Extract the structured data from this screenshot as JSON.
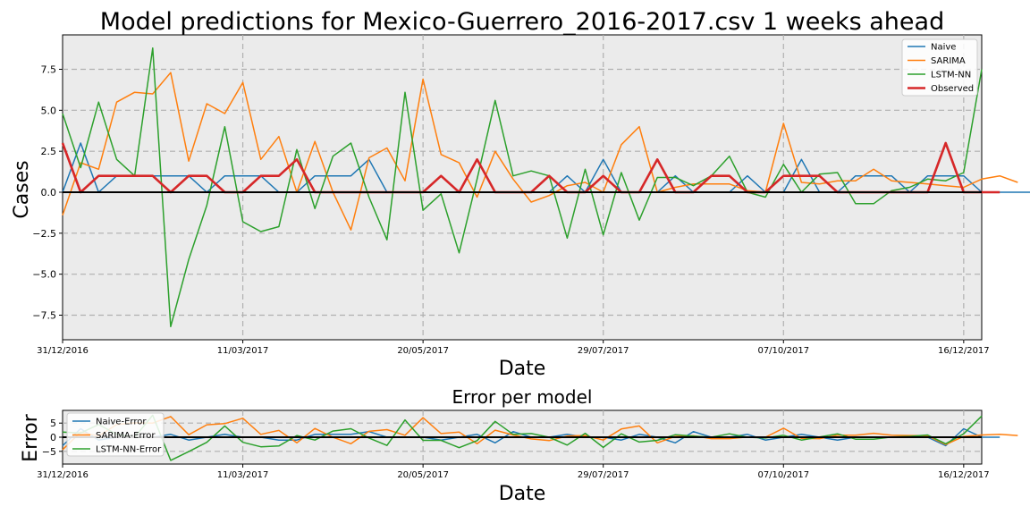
{
  "chart_data": [
    {
      "type": "line",
      "title": "Model predictions for Mexico-Guerrero_2016-2017.csv 1 weeks ahead",
      "xlabel": "Date",
      "ylabel": "Cases",
      "x_start": "31/12/2016",
      "x_step_days": 7,
      "x_ticks": [
        "31/12/2016",
        "11/03/2017",
        "20/05/2017",
        "29/07/2017",
        "07/10/2017",
        "16/12/2017"
      ],
      "xlim": [
        "31/12/2016",
        "23/12/2017"
      ],
      "y_ticks": [
        -7.5,
        -5.0,
        -2.5,
        0.0,
        2.5,
        5.0,
        7.5
      ],
      "ylim": [
        -9,
        9.6
      ],
      "grid": true,
      "legend_position": "upper right",
      "series": [
        {
          "name": "Naive",
          "color": "#1f77b4",
          "values": [
            0,
            3,
            0,
            1,
            1,
            1,
            1,
            1,
            0,
            1,
            1,
            1,
            0,
            0,
            1,
            1,
            1,
            2,
            0,
            0,
            0,
            0,
            0,
            0,
            0,
            0,
            0,
            0,
            1,
            0,
            2,
            0,
            0,
            0,
            1,
            0,
            0,
            0,
            1,
            0,
            0,
            2,
            0,
            0,
            1,
            1,
            1,
            0,
            1,
            1,
            1,
            0,
            0,
            0,
            0,
            0,
            0,
            0,
            3,
            0,
            0
          ]
        },
        {
          "name": "SARIMA",
          "color": "#ff7f0e",
          "values": [
            -1.4,
            1.8,
            1.4,
            5.5,
            6.1,
            6.0,
            7.3,
            1.9,
            5.4,
            4.8,
            6.7,
            2.0,
            3.4,
            0.0,
            3.1,
            0.0,
            -2.3,
            2.1,
            2.7,
            0.7,
            6.9,
            2.3,
            1.8,
            -0.3,
            2.5,
            0.8,
            -0.6,
            -0.2,
            0.4,
            0.6,
            0.0,
            2.9,
            4.0,
            0.0,
            0.3,
            0.5,
            0.5,
            0.5,
            0.1,
            0.0,
            4.2,
            0.6,
            0.5,
            0.7,
            0.7,
            1.4,
            0.7,
            0.6,
            0.5,
            0.4,
            0.3,
            0.8,
            1.0,
            0.6
          ]
        },
        {
          "name": "LSTM-NN",
          "color": "#2ca02c",
          "values": [
            4.8,
            1.5,
            5.5,
            2.0,
            1.0,
            8.8,
            -8.2,
            -4.1,
            -0.8,
            4.0,
            -1.8,
            -2.4,
            -2.1,
            2.6,
            -1.0,
            2.2,
            3.0,
            -0.3,
            -2.9,
            6.1,
            -1.1,
            -0.1,
            -3.7,
            0.8,
            5.6,
            1.0,
            1.3,
            1.0,
            -2.8,
            1.4,
            -2.6,
            1.2,
            -1.7,
            0.9,
            0.9,
            0.4,
            1.0,
            2.2,
            0.0,
            -0.3,
            1.7,
            0.0,
            1.1,
            1.2,
            -0.7,
            -0.7,
            0.1,
            0.3,
            0.8,
            0.7,
            1.2,
            7.5
          ]
        },
        {
          "name": "Observed",
          "color": "#d62728",
          "values": [
            3,
            0,
            1,
            1,
            1,
            1,
            0,
            1,
            1,
            0,
            0,
            1,
            1,
            2,
            0,
            0,
            0,
            0,
            0,
            0,
            0,
            1,
            0,
            2,
            0,
            0,
            0,
            1,
            0,
            0,
            1,
            0,
            0,
            2,
            0,
            0,
            1,
            1,
            0,
            0,
            1,
            1,
            1,
            0,
            0,
            0,
            0,
            0,
            0,
            3,
            0,
            0,
            0
          ]
        }
      ]
    },
    {
      "type": "line",
      "title": "Error per model",
      "xlabel": "Date",
      "ylabel": "Error",
      "x_start": "31/12/2016",
      "x_step_days": 7,
      "x_ticks": [
        "31/12/2016",
        "11/03/2017",
        "20/05/2017",
        "29/07/2017",
        "07/10/2017",
        "16/12/2017"
      ],
      "xlim": [
        "31/12/2016",
        "23/12/2017"
      ],
      "y_ticks": [
        -5,
        0,
        5
      ],
      "ylim": [
        -9.5,
        9.5
      ],
      "grid": true,
      "legend_position": "upper left",
      "series": [
        {
          "name": "Naive-Error",
          "color": "#1f77b4",
          "values": [
            -3,
            3,
            -1,
            0,
            0,
            0,
            1,
            -1,
            0,
            1,
            0,
            0,
            -1,
            -1,
            1,
            1,
            1,
            2,
            0,
            0,
            0,
            -1,
            0,
            1,
            -2,
            2,
            0,
            0,
            1,
            0,
            0,
            -1,
            1,
            0,
            -2,
            2,
            0,
            0,
            1,
            -1,
            0,
            1,
            0,
            -1,
            0,
            0,
            0,
            0,
            0,
            -3,
            3,
            0,
            0
          ]
        },
        {
          "name": "SARIMA-Error",
          "color": "#ff7f0e",
          "values": [
            -4.4,
            1.8,
            0.4,
            4.5,
            5.1,
            5.0,
            7.3,
            0.9,
            4.4,
            4.8,
            6.7,
            1.0,
            2.4,
            -2.0,
            3.1,
            0.0,
            -2.3,
            2.1,
            2.7,
            0.7,
            6.9,
            1.3,
            1.8,
            -2.3,
            2.5,
            0.8,
            -0.6,
            -1.2,
            0.4,
            0.6,
            -1.0,
            2.9,
            4.0,
            -2.0,
            0.3,
            0.5,
            -0.5,
            -0.5,
            0.1,
            0.0,
            3.2,
            -0.4,
            -0.5,
            0.7,
            0.7,
            1.4,
            0.7,
            0.6,
            0.5,
            -2.6,
            0.3,
            0.8,
            1.0,
            0.6
          ]
        },
        {
          "name": "LSTM-NN-Error",
          "color": "#2ca02c",
          "values": [
            1.8,
            1.5,
            4.5,
            1.0,
            0.0,
            7.8,
            -8.2,
            -5.1,
            -1.8,
            4.0,
            -1.8,
            -3.4,
            -3.1,
            0.6,
            -1.0,
            2.2,
            3.0,
            -0.3,
            -2.9,
            6.1,
            -1.1,
            -1.1,
            -3.7,
            -1.2,
            5.6,
            1.0,
            1.3,
            0.0,
            -2.8,
            1.4,
            -3.6,
            1.2,
            -1.7,
            -1.1,
            0.9,
            0.4,
            0.0,
            1.2,
            0.0,
            -0.3,
            0.7,
            -1.0,
            0.1,
            1.2,
            -0.7,
            -0.7,
            0.1,
            0.3,
            0.8,
            -2.3,
            1.2,
            7.5
          ]
        }
      ]
    }
  ]
}
